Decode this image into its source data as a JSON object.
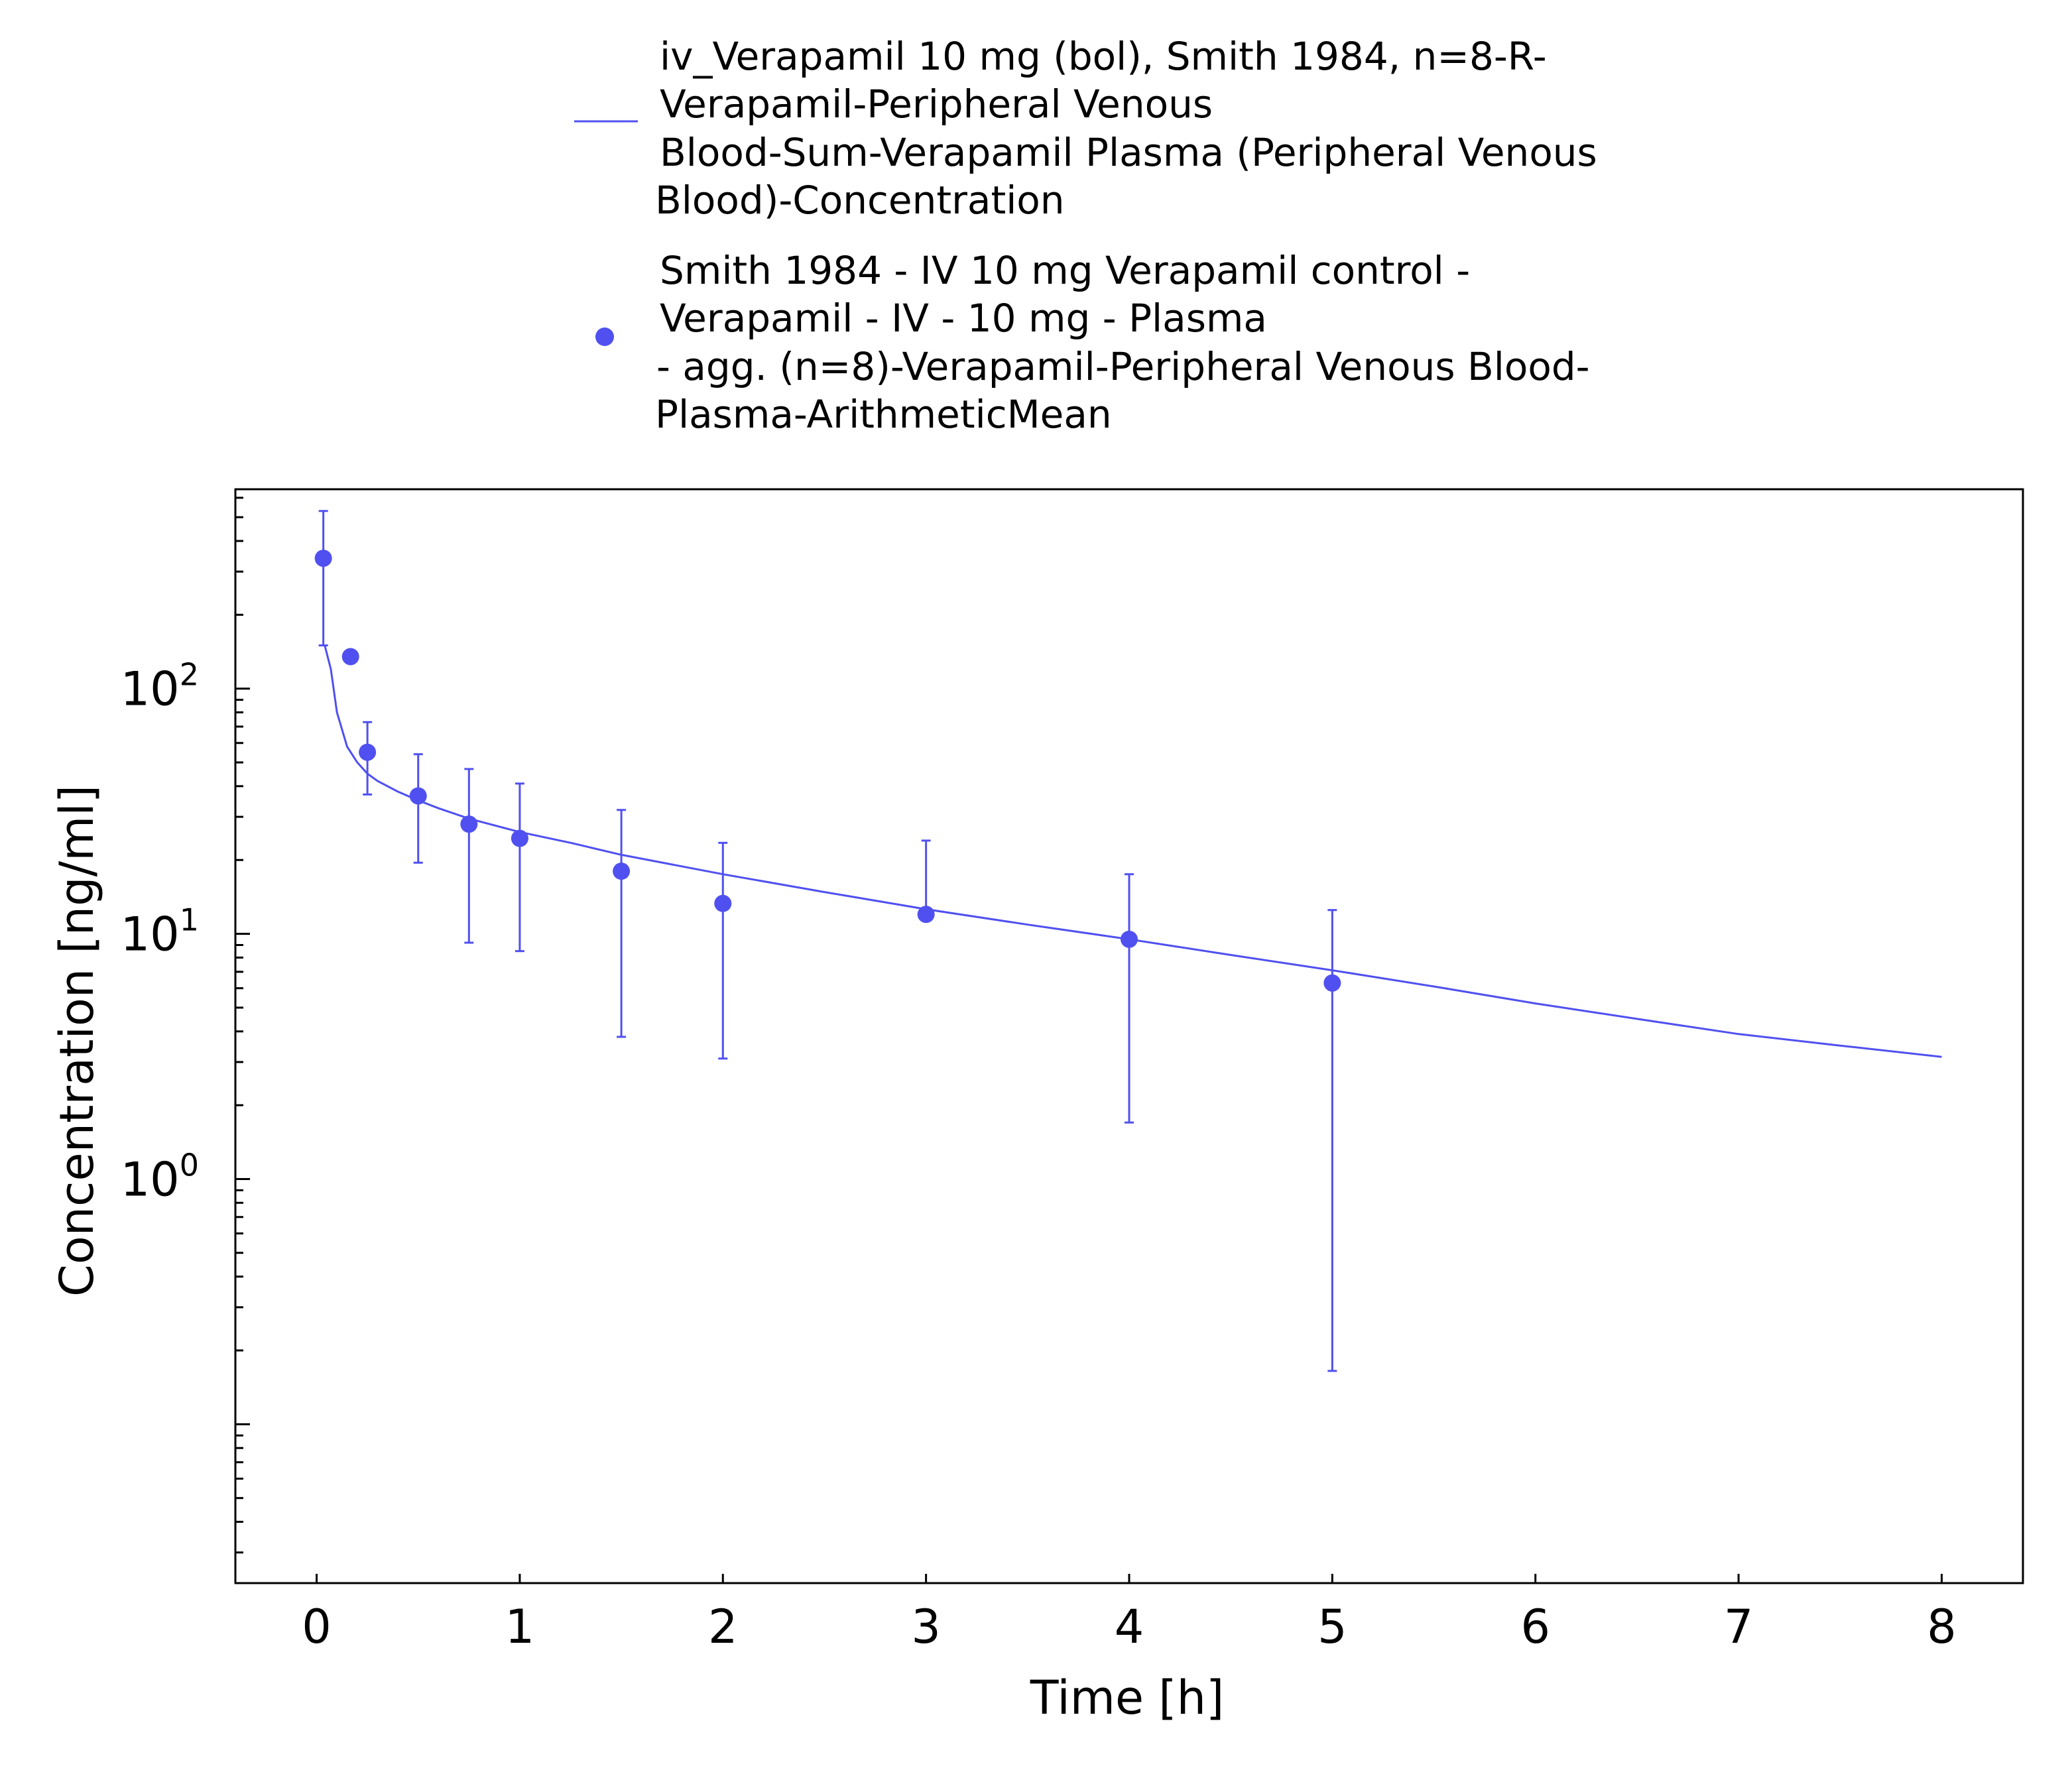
{
  "chart_data": {
    "type": "line",
    "title": "",
    "xlabel": "Time [h]",
    "ylabel": "Concentration [ng/ml]",
    "x_scale": "linear",
    "y_scale": "log",
    "xlim": [
      -0.4,
      8.4
    ],
    "ylim": [
      0.003,
      0.67
    ],
    "ylim_note": "",
    "xlim_data": [
      -0.4,
      8.4
    ],
    "ylim_data": [
      0.0225,
      650
    ],
    "x_ticks": [
      0,
      1,
      2,
      3,
      4,
      5,
      6,
      7,
      8
    ],
    "x_tick_labels": [
      "0",
      "1",
      "2",
      "3",
      "4",
      "5",
      "6",
      "7",
      "8"
    ],
    "y_ticks": [
      1,
      10,
      100
    ],
    "y_tick_base": "10",
    "y_tick_exponents": [
      "0",
      "1",
      "2"
    ],
    "grid": false,
    "legend_position": "top-center",
    "color": "#5050f0",
    "series": [
      {
        "name": "iv_Verapamil 10 mg (bol), Smith 1984, n=8-R-Verapamil-Peripheral Venous Blood-Sum-Verapamil Plasma (Peripheral Venous Blood)-Concentration",
        "legend_lines": [
          "iv_Verapamil 10 mg (bol), Smith 1984, n=8-R-",
          "Verapamil-Peripheral Venous",
          "Blood-Sum-Verapamil Plasma (Peripheral Venous",
          "Blood)-Concentration"
        ],
        "kind": "line",
        "x": [
          0.04,
          0.07,
          0.1,
          0.15,
          0.2,
          0.25,
          0.3,
          0.4,
          0.5,
          0.6,
          0.75,
          1.0,
          1.25,
          1.5,
          2.0,
          2.5,
          3.0,
          3.5,
          4.0,
          4.5,
          5.0,
          5.5,
          6.0,
          6.5,
          7.0,
          7.5,
          8.0
        ],
        "y": [
          150,
          120,
          80,
          58,
          50,
          45,
          42,
          38,
          35,
          32.5,
          29.5,
          26,
          23.5,
          21,
          17.5,
          14.8,
          12.6,
          10.9,
          9.5,
          8.2,
          7.1,
          6.1,
          5.2,
          4.5,
          3.9,
          3.5,
          3.15
        ]
      },
      {
        "name": "Smith 1984 - IV 10 mg Verapamil control - Verapamil - IV - 10 mg - Plasma - agg. (n=8)-Verapamil-Peripheral Venous Blood-Plasma-ArithmeticMean",
        "legend_lines": [
          "Smith 1984 - IV 10 mg Verapamil control -",
          "Verapamil - IV - 10 mg - Plasma",
          "- agg. (n=8)-Verapamil-Peripheral Venous Blood-",
          "Plasma-ArithmeticMean"
        ],
        "kind": "scatter",
        "points": [
          {
            "x": 0.033,
            "y": 340,
            "err_low": 150,
            "err_high": 530
          },
          {
            "x": 0.167,
            "y": 135
          },
          {
            "x": 0.25,
            "y": 55,
            "err_low": 37,
            "err_high": 73
          },
          {
            "x": 0.5,
            "y": 36.5,
            "err_low": 19.5,
            "err_high": 54
          },
          {
            "x": 0.75,
            "y": 28,
            "err_low": 9.2,
            "err_high": 47
          },
          {
            "x": 1.0,
            "y": 24.5,
            "err_low": 8.5,
            "err_high": 41
          },
          {
            "x": 1.5,
            "y": 18,
            "err_low": 3.8,
            "err_high": 32
          },
          {
            "x": 2.0,
            "y": 13.3,
            "err_low": 3.1,
            "err_high": 23.5
          },
          {
            "x": 3.0,
            "y": 12,
            "err_low": 12,
            "err_high": 24
          },
          {
            "x": 4.0,
            "y": 9.5,
            "err_low": 1.7,
            "err_high": 17.5
          },
          {
            "x": 5.0,
            "y": 6.3,
            "err_low": 0.165,
            "err_high": 12.5
          }
        ]
      }
    ]
  }
}
